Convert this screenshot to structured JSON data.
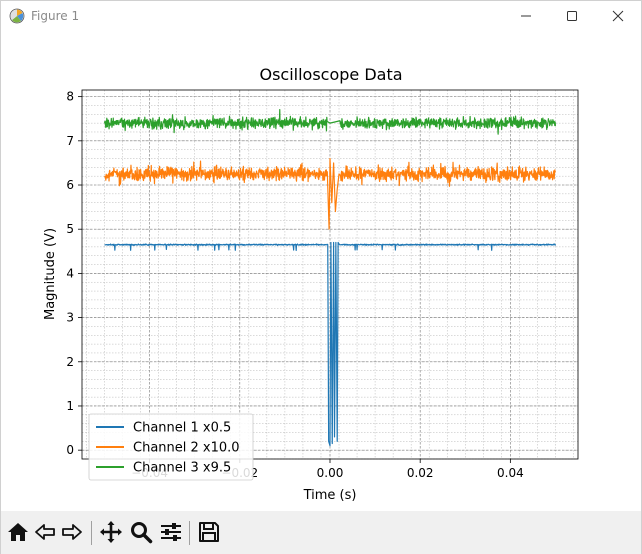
{
  "window": {
    "title": "Figure 1",
    "icons": [
      "matplotlib-icon",
      "minimize-icon",
      "maximize-icon",
      "close-icon"
    ]
  },
  "toolbar": {
    "buttons": [
      "home-icon",
      "back-icon",
      "forward-icon",
      "pan-icon",
      "zoom-icon",
      "subplots-icon",
      "save-icon"
    ]
  },
  "chart_data": {
    "type": "line",
    "title": "Oscilloscope Data",
    "xlabel": "Time (s)",
    "ylabel": "Magnitude (V)",
    "xlim": [
      -0.055,
      0.055
    ],
    "ylim": [
      -0.2,
      8.15
    ],
    "xticks": [
      -0.04,
      -0.02,
      0.0,
      0.02,
      0.04
    ],
    "xtick_labels": [
      "−0.04",
      "−0.02",
      "0.00",
      "0.02",
      "0.04"
    ],
    "yticks": [
      0,
      1,
      2,
      3,
      4,
      5,
      6,
      7,
      8
    ],
    "ytick_labels": [
      "0",
      "1",
      "2",
      "3",
      "4",
      "5",
      "6",
      "7",
      "8"
    ],
    "grid": "major and minor",
    "legend_position": "lower-left",
    "series": [
      {
        "name": "Channel 1 x0.5",
        "color": "#1f77b4",
        "x": [
          -0.05,
          -0.0005,
          -0.0003,
          0.0,
          0.0002,
          0.0005,
          0.0008,
          0.001,
          0.0013,
          0.0016,
          0.0018,
          0.0021,
          0.05
        ],
        "y": [
          4.65,
          4.65,
          0.2,
          0.1,
          4.7,
          0.15,
          4.7,
          0.3,
          4.7,
          0.2,
          4.7,
          4.65,
          4.65
        ]
      },
      {
        "name": "Channel 2 x10.0",
        "color": "#ff7f0e",
        "x": [
          -0.05,
          -0.0006,
          -0.0002,
          0.0,
          0.0004,
          0.0008,
          0.0012,
          0.0016,
          0.002,
          0.05
        ],
        "y": [
          6.25,
          6.3,
          5.0,
          6.6,
          5.6,
          6.5,
          5.4,
          5.9,
          6.25,
          6.25
        ]
      },
      {
        "name": "Channel 3 x9.5",
        "color": "#2ca02c",
        "x": [
          -0.05,
          0.0,
          0.05
        ],
        "y": [
          7.4,
          7.4,
          7.4
        ]
      }
    ]
  }
}
